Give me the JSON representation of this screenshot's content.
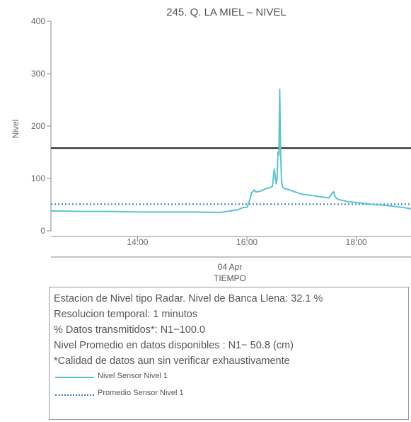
{
  "chart_data": {
    "type": "line",
    "title": "245. Q. LA MIEL – NIVEL",
    "ylabel": "Nivel",
    "xlabel_date": "04 Apr",
    "xlabel": "TIEMPO",
    "ylim": [
      0,
      400
    ],
    "xlim": [
      "12:25",
      "19:00"
    ],
    "y_ticks": [
      "0",
      "100",
      "200",
      "300",
      "400"
    ],
    "x_ticks": [
      "14:00",
      "16:00",
      "18:00"
    ],
    "banca_llena": 158,
    "series": [
      {
        "name": "Nivel Sensor Nivel 1",
        "color": "#5bc3d1",
        "x": [
          "12:25",
          "13:00",
          "13:30",
          "14:00",
          "14:30",
          "15:00",
          "15:30",
          "15:50",
          "15:55",
          "16:00",
          "16:03",
          "16:05",
          "16:08",
          "16:10",
          "16:15",
          "16:20",
          "16:25",
          "16:28",
          "16:30",
          "16:32",
          "16:33",
          "16:34",
          "16:35",
          "16:36",
          "16:37",
          "16:38",
          "16:39",
          "16:40",
          "16:42",
          "16:45",
          "16:50",
          "17:00",
          "17:10",
          "17:20",
          "17:30",
          "17:35",
          "17:37",
          "17:40",
          "17:50",
          "18:00",
          "18:10",
          "18:20",
          "18:30",
          "18:40",
          "18:50",
          "19:00"
        ],
        "values": [
          38,
          37,
          37,
          36,
          36,
          36,
          35,
          40,
          44,
          45,
          58,
          72,
          78,
          74,
          76,
          80,
          82,
          85,
          118,
          90,
          98,
          150,
          145,
          270,
          148,
          95,
          85,
          82,
          80,
          79,
          76,
          70,
          68,
          65,
          63,
          75,
          64,
          60,
          56,
          54,
          52,
          50,
          49,
          47,
          45,
          42
        ]
      },
      {
        "name": "Promedio Sensor Nivel 1",
        "color": "#3a78b0",
        "x": [
          "12:25",
          "19:00"
        ],
        "values": [
          50.8,
          50.8
        ]
      }
    ]
  },
  "info": [
    "Estacion de Nivel tipo Radar. Nivel de Banca Llena: 32.1 %",
    "Resolucion temporal: 1 minutos",
    "% Datos transmitidos*: N1−100.0",
    "Nivel Promedio en datos disponibles : N1− 50.8 (cm)",
    "*Calidad de datos aun sin verificar exhaustivamente"
  ]
}
